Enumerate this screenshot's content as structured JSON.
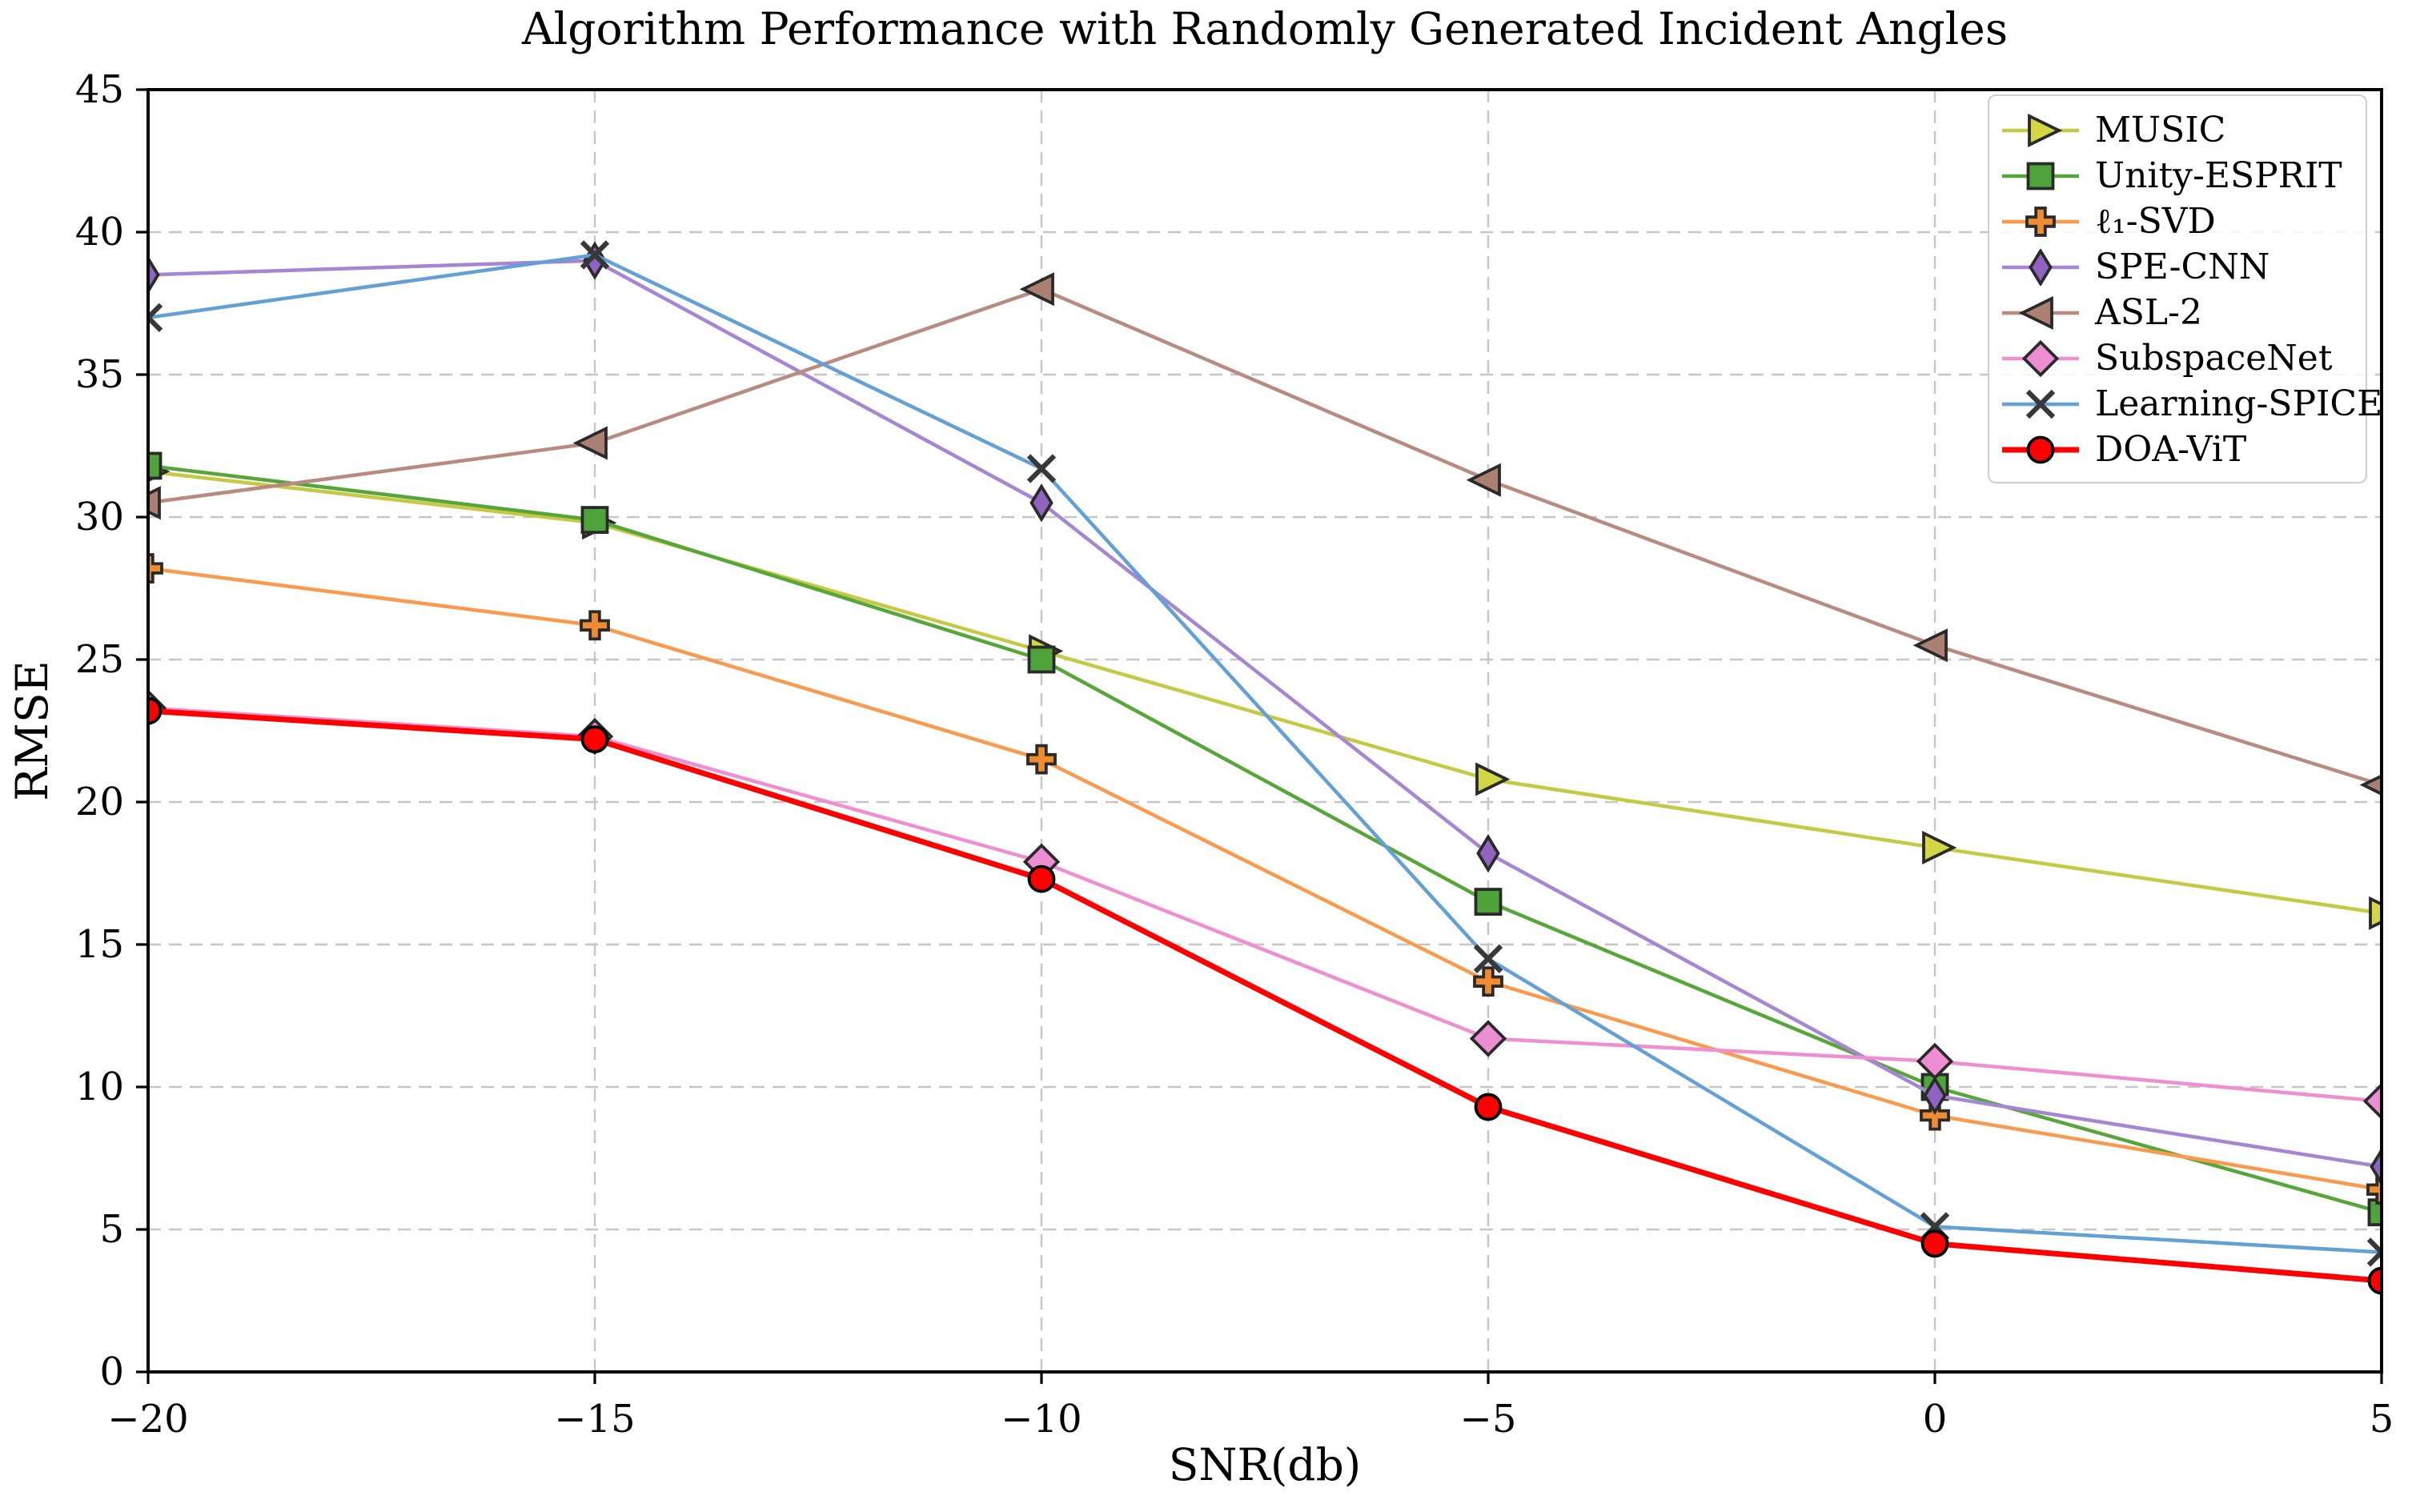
{
  "figure": {
    "title": "Algorithm Performance with Randomly Generated Incident Angles",
    "xlabel": "SNR(db)",
    "ylabel": "RMSE"
  },
  "chart_data": {
    "type": "line",
    "title": "Algorithm Performance with Randomly Generated Incident Angles",
    "xlabel": "SNR(db)",
    "ylabel": "RMSE",
    "x": [
      -20,
      -15,
      -10,
      -5,
      0,
      5
    ],
    "xlim": [
      -20,
      5
    ],
    "ylim": [
      0,
      45
    ],
    "xticks": [
      -20,
      -15,
      -10,
      -5,
      0,
      5
    ],
    "yticks": [
      0,
      5,
      10,
      15,
      20,
      25,
      30,
      35,
      40,
      45
    ],
    "xtick_labels": [
      "−20",
      "−15",
      "−10",
      "−5",
      "0",
      "5"
    ],
    "ytick_labels": [
      "0",
      "5",
      "10",
      "15",
      "20",
      "25",
      "30",
      "35",
      "40",
      "45"
    ],
    "grid": true,
    "grid_style": "dashed",
    "grid_color": "#c6c6c6",
    "legend_position": "upper right",
    "series": [
      {
        "name": "MUSIC",
        "color": "#c6c944",
        "marker": "triangle-right",
        "marker_fill": "#d3d645",
        "marker_edge": "#2a2a2a",
        "linewidth": 4.5,
        "values": [
          31.6,
          29.8,
          25.3,
          20.8,
          18.4,
          16.1
        ]
      },
      {
        "name": "Unity-ESPRIT",
        "color": "#57a639",
        "marker": "square",
        "marker_fill": "#4ea43a",
        "marker_edge": "#2a2a2a",
        "linewidth": 4.5,
        "values": [
          31.8,
          29.9,
          25.0,
          16.5,
          10.0,
          5.6
        ]
      },
      {
        "name": "ℓ₁-SVD",
        "color": "#fb9a4d",
        "marker": "plus",
        "marker_fill": "#ef8b30",
        "marker_edge": "#2a2a2a",
        "linewidth": 4.5,
        "values": [
          28.2,
          26.2,
          21.5,
          13.7,
          9.0,
          6.4
        ]
      },
      {
        "name": "SPE-CNN",
        "color": "#a685d2",
        "marker": "diamond-thin",
        "marker_fill": "#8f63c0",
        "marker_edge": "#2a2a2a",
        "linewidth": 4.5,
        "values": [
          38.5,
          39.0,
          30.5,
          18.2,
          9.7,
          7.2
        ]
      },
      {
        "name": "ASL-2",
        "color": "#b98a80",
        "marker": "triangle-left",
        "marker_fill": "#ab7f72",
        "marker_edge": "#2a2a2a",
        "linewidth": 4.5,
        "values": [
          30.5,
          32.6,
          38.0,
          31.3,
          25.5,
          20.6
        ]
      },
      {
        "name": "SubspaceNet",
        "color": "#ef8fd1",
        "marker": "diamond",
        "marker_fill": "#ee8ed2",
        "marker_edge": "#2a2a2a",
        "linewidth": 4.5,
        "values": [
          23.3,
          22.3,
          17.9,
          11.7,
          10.9,
          9.5
        ]
      },
      {
        "name": "Learning-SPICE",
        "color": "#62a0d5",
        "marker": "x",
        "marker_fill": "none",
        "marker_edge": "#383838",
        "linewidth": 4.5,
        "values": [
          37.0,
          39.2,
          31.7,
          14.5,
          5.1,
          4.2
        ]
      },
      {
        "name": "DOA-ViT",
        "color": "#ff0000",
        "marker": "circle",
        "marker_fill": "#ff0000",
        "marker_edge": "#000000",
        "linewidth": 7,
        "values": [
          23.2,
          22.2,
          17.3,
          9.3,
          4.5,
          3.2
        ]
      }
    ]
  }
}
